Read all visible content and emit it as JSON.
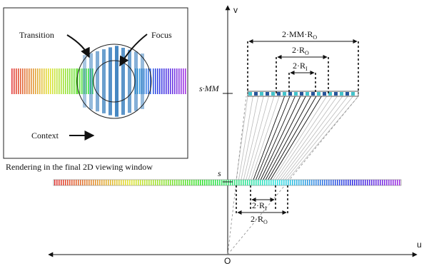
{
  "inset": {
    "labels": {
      "transition": "Transition",
      "focus": "Focus",
      "context": "Context"
    },
    "caption": "Rendering in the final 2D viewing window"
  },
  "axes": {
    "u_label": "u",
    "v_label": "v",
    "origin_label": "O"
  },
  "labels": {
    "s_mm": "s·MM",
    "s": "s",
    "top_outer": "2·MM·R",
    "top_outer_sub": "O",
    "top_middle": "2·R",
    "top_middle_sub": "O",
    "top_inner": "2·R",
    "top_inner_sub": "I",
    "bottom_inner": "2·R",
    "bottom_inner_sub": "I",
    "bottom_outer": "2·R",
    "bottom_outer_sub": "O"
  },
  "colors": {
    "ink": "#111111",
    "circle": "#222222",
    "focus_stripes": "#2f78bb",
    "top_strip_cyan": "#42c4cc",
    "top_strip_blue": "#27569a",
    "guide_lines": "#bbbbbb"
  }
}
